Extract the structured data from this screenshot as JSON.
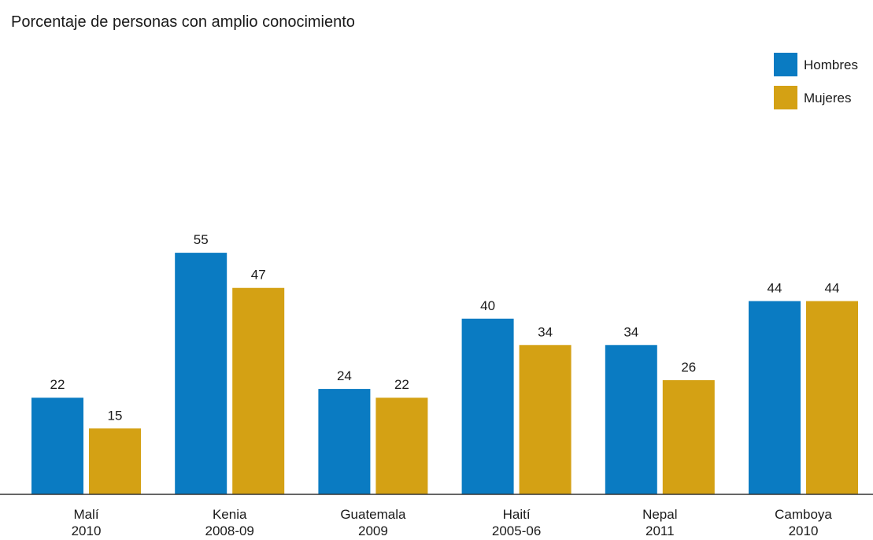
{
  "chart_data": {
    "type": "bar",
    "title": "Porcentaje de personas con amplio conocimiento",
    "categories": [
      [
        "Malí",
        "2010"
      ],
      [
        "Kenia",
        "2008-09"
      ],
      [
        "Guatemala",
        "2009"
      ],
      [
        "Haití",
        "2005-06"
      ],
      [
        "Nepal",
        "2011"
      ],
      [
        "Camboya",
        "2010"
      ]
    ],
    "series": [
      {
        "name": "Hombres",
        "color": "#0a7bc2",
        "values": [
          22,
          55,
          24,
          40,
          34,
          44
        ]
      },
      {
        "name": "Mujeres",
        "color": "#d4a114",
        "values": [
          15,
          47,
          22,
          34,
          26,
          44
        ]
      }
    ],
    "ylim": [
      0,
      60
    ],
    "grid": false,
    "legend": "top-right",
    "xlabel": "",
    "ylabel": ""
  }
}
